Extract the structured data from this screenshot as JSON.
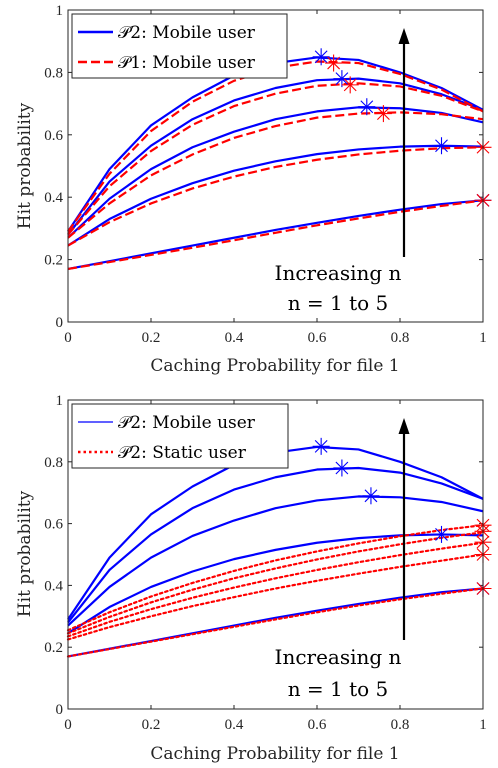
{
  "chart_data": [
    {
      "type": "line",
      "xlabel": "Caching Probability for file 1",
      "ylabel": "Hit probability",
      "xlim": [
        0,
        1
      ],
      "ylim": [
        0,
        1
      ],
      "xticks": [
        "0",
        "0.2",
        "0.4",
        "0.6",
        "0.8",
        "1"
      ],
      "yticks": [
        "0",
        "0.2",
        "0.4",
        "0.6",
        "0.8",
        "1"
      ],
      "grid": false,
      "legend_placement": "top-left",
      "legend": [
        {
          "label": "𝒫2: Mobile user",
          "color": "#0000ff",
          "style": "solid"
        },
        {
          "label": "𝒫1: Mobile user",
          "color": "#ff0000",
          "style": "dashed"
        }
      ],
      "annotation": {
        "line1": "Increasing n",
        "line2": "n = 1 to 5"
      },
      "series": [
        {
          "group": "P2: Mobile user",
          "n": 1,
          "color": "#0000ff",
          "dash": "solid",
          "x": [
            0,
            0.1,
            0.2,
            0.3,
            0.4,
            0.5,
            0.6,
            0.7,
            0.8,
            0.9,
            1.0
          ],
          "y": [
            0.17,
            0.195,
            0.22,
            0.245,
            0.27,
            0.295,
            0.318,
            0.34,
            0.36,
            0.378,
            0.39
          ],
          "marker": {
            "x": 1.0,
            "y": 0.39
          }
        },
        {
          "group": "P1: Mobile user",
          "n": 1,
          "color": "#ff0000",
          "dash": "dashed",
          "x": [
            0,
            0.1,
            0.2,
            0.3,
            0.4,
            0.5,
            0.6,
            0.7,
            0.8,
            0.9,
            1.0
          ],
          "y": [
            0.17,
            0.192,
            0.215,
            0.238,
            0.262,
            0.286,
            0.31,
            0.332,
            0.353,
            0.372,
            0.39
          ],
          "marker": {
            "x": 1.0,
            "y": 0.39
          }
        },
        {
          "group": "P2: Mobile user",
          "n": 2,
          "color": "#0000ff",
          "dash": "solid",
          "x": [
            0,
            0.1,
            0.2,
            0.3,
            0.4,
            0.5,
            0.6,
            0.7,
            0.8,
            0.9,
            1.0
          ],
          "y": [
            0.245,
            0.33,
            0.395,
            0.445,
            0.485,
            0.515,
            0.538,
            0.553,
            0.562,
            0.565,
            0.562
          ],
          "marker": {
            "x": 0.9,
            "y": 0.565
          }
        },
        {
          "group": "P1: Mobile user",
          "n": 2,
          "color": "#ff0000",
          "dash": "dashed",
          "x": [
            0,
            0.1,
            0.2,
            0.3,
            0.4,
            0.5,
            0.6,
            0.7,
            0.8,
            0.9,
            1.0
          ],
          "y": [
            0.245,
            0.32,
            0.38,
            0.428,
            0.466,
            0.497,
            0.52,
            0.537,
            0.549,
            0.557,
            0.56
          ],
          "marker": {
            "x": 1.0,
            "y": 0.56
          }
        },
        {
          "group": "P2: Mobile user",
          "n": 3,
          "color": "#0000ff",
          "dash": "solid",
          "x": [
            0,
            0.1,
            0.2,
            0.3,
            0.4,
            0.5,
            0.6,
            0.7,
            0.8,
            0.9,
            1.0
          ],
          "y": [
            0.27,
            0.395,
            0.49,
            0.56,
            0.61,
            0.65,
            0.675,
            0.688,
            0.685,
            0.67,
            0.64
          ],
          "marker": {
            "x": 0.72,
            "y": 0.69
          }
        },
        {
          "group": "P1: Mobile user",
          "n": 3,
          "color": "#ff0000",
          "dash": "dashed",
          "x": [
            0,
            0.1,
            0.2,
            0.3,
            0.4,
            0.5,
            0.6,
            0.7,
            0.8,
            0.9,
            1.0
          ],
          "y": [
            0.27,
            0.38,
            0.47,
            0.537,
            0.59,
            0.628,
            0.655,
            0.668,
            0.672,
            0.666,
            0.65
          ],
          "marker": {
            "x": 0.76,
            "y": 0.668
          }
        },
        {
          "group": "P2: Mobile user",
          "n": 4,
          "color": "#0000ff",
          "dash": "solid",
          "x": [
            0,
            0.1,
            0.2,
            0.3,
            0.4,
            0.5,
            0.6,
            0.7,
            0.8,
            0.9,
            1.0
          ],
          "y": [
            0.28,
            0.45,
            0.565,
            0.65,
            0.71,
            0.75,
            0.775,
            0.78,
            0.765,
            0.73,
            0.68
          ],
          "marker": {
            "x": 0.66,
            "y": 0.78
          }
        },
        {
          "group": "P1: Mobile user",
          "n": 4,
          "color": "#ff0000",
          "dash": "dashed",
          "x": [
            0,
            0.1,
            0.2,
            0.3,
            0.4,
            0.5,
            0.6,
            0.7,
            0.8,
            0.9,
            1.0
          ],
          "y": [
            0.28,
            0.435,
            0.548,
            0.632,
            0.692,
            0.732,
            0.757,
            0.765,
            0.755,
            0.725,
            0.675
          ],
          "marker": {
            "x": 0.68,
            "y": 0.76
          }
        },
        {
          "group": "P2: Mobile user",
          "n": 5,
          "color": "#0000ff",
          "dash": "solid",
          "x": [
            0,
            0.1,
            0.2,
            0.3,
            0.4,
            0.5,
            0.6,
            0.7,
            0.8,
            0.9,
            1.0
          ],
          "y": [
            0.29,
            0.49,
            0.63,
            0.72,
            0.79,
            0.83,
            0.848,
            0.84,
            0.8,
            0.75,
            0.68
          ],
          "marker": {
            "x": 0.61,
            "y": 0.85
          }
        },
        {
          "group": "P1: Mobile user",
          "n": 5,
          "color": "#ff0000",
          "dash": "dashed",
          "x": [
            0,
            0.1,
            0.2,
            0.3,
            0.4,
            0.5,
            0.6,
            0.7,
            0.8,
            0.9,
            1.0
          ],
          "y": [
            0.29,
            0.475,
            0.612,
            0.706,
            0.773,
            0.815,
            0.835,
            0.83,
            0.795,
            0.745,
            0.675
          ],
          "marker": {
            "x": 0.64,
            "y": 0.83
          }
        }
      ]
    },
    {
      "type": "line",
      "xlabel": "Caching Probability for file 1",
      "ylabel": "Hit probability",
      "xlim": [
        0,
        1
      ],
      "ylim": [
        0,
        1
      ],
      "xticks": [
        "0",
        "0.2",
        "0.4",
        "0.6",
        "0.8",
        "1"
      ],
      "yticks": [
        "0",
        "0.2",
        "0.4",
        "0.6",
        "0.8",
        "1"
      ],
      "grid": false,
      "legend_placement": "top-left",
      "legend": [
        {
          "label": "𝒫2: Mobile user",
          "color": "#0000ff",
          "style": "solid"
        },
        {
          "label": "𝒫2: Static user",
          "color": "#ff0000",
          "style": "dotted"
        }
      ],
      "annotation": {
        "line1": "Increasing n",
        "line2": "n = 1 to 5"
      },
      "series": [
        {
          "group": "P2: Mobile user",
          "n": 1,
          "color": "#0000ff",
          "dash": "solid",
          "x": [
            0,
            0.1,
            0.2,
            0.3,
            0.4,
            0.5,
            0.6,
            0.7,
            0.8,
            0.9,
            1.0
          ],
          "y": [
            0.17,
            0.195,
            0.22,
            0.245,
            0.27,
            0.295,
            0.318,
            0.34,
            0.36,
            0.378,
            0.39
          ],
          "marker": {
            "x": 1.0,
            "y": 0.39
          }
        },
        {
          "group": "P2: Mobile user",
          "n": 2,
          "color": "#0000ff",
          "dash": "solid",
          "x": [
            0,
            0.1,
            0.2,
            0.3,
            0.4,
            0.5,
            0.6,
            0.7,
            0.8,
            0.9,
            1.0
          ],
          "y": [
            0.245,
            0.33,
            0.395,
            0.445,
            0.485,
            0.515,
            0.538,
            0.553,
            0.562,
            0.565,
            0.562
          ],
          "marker": {
            "x": 0.9,
            "y": 0.565
          }
        },
        {
          "group": "P2: Mobile user",
          "n": 3,
          "color": "#0000ff",
          "dash": "solid",
          "x": [
            0,
            0.1,
            0.2,
            0.3,
            0.4,
            0.5,
            0.6,
            0.7,
            0.8,
            0.9,
            1.0
          ],
          "y": [
            0.27,
            0.395,
            0.49,
            0.56,
            0.61,
            0.65,
            0.675,
            0.688,
            0.685,
            0.67,
            0.64
          ],
          "marker": {
            "x": 0.73,
            "y": 0.69
          }
        },
        {
          "group": "P2: Mobile user",
          "n": 4,
          "color": "#0000ff",
          "dash": "solid",
          "x": [
            0,
            0.1,
            0.2,
            0.3,
            0.4,
            0.5,
            0.6,
            0.7,
            0.8,
            0.9,
            1.0
          ],
          "y": [
            0.28,
            0.45,
            0.565,
            0.65,
            0.71,
            0.75,
            0.775,
            0.78,
            0.765,
            0.73,
            0.68
          ],
          "marker": {
            "x": 0.66,
            "y": 0.78
          }
        },
        {
          "group": "P2: Mobile user",
          "n": 5,
          "color": "#0000ff",
          "dash": "solid",
          "x": [
            0,
            0.1,
            0.2,
            0.3,
            0.4,
            0.5,
            0.6,
            0.7,
            0.8,
            0.9,
            1.0
          ],
          "y": [
            0.29,
            0.49,
            0.63,
            0.72,
            0.79,
            0.83,
            0.848,
            0.84,
            0.8,
            0.75,
            0.68
          ],
          "marker": {
            "x": 0.61,
            "y": 0.85
          }
        },
        {
          "group": "P2: Static user",
          "n": 1,
          "color": "#ff0000",
          "dash": "dotted",
          "x": [
            0,
            0.1,
            0.2,
            0.3,
            0.4,
            0.5,
            0.6,
            0.7,
            0.8,
            0.9,
            1.0
          ],
          "y": [
            0.17,
            0.194,
            0.218,
            0.242,
            0.266,
            0.29,
            0.313,
            0.335,
            0.355,
            0.373,
            0.39
          ],
          "marker": {
            "x": 1.0,
            "y": 0.39
          }
        },
        {
          "group": "P2: Static user",
          "n": 2,
          "color": "#ff0000",
          "dash": "dotted",
          "x": [
            0,
            0.1,
            0.2,
            0.3,
            0.4,
            0.5,
            0.6,
            0.7,
            0.8,
            0.9,
            1.0
          ],
          "y": [
            0.225,
            0.265,
            0.3,
            0.333,
            0.362,
            0.39,
            0.415,
            0.438,
            0.46,
            0.48,
            0.5
          ],
          "marker": {
            "x": 1.0,
            "y": 0.5
          }
        },
        {
          "group": "P2: Static user",
          "n": 3,
          "color": "#ff0000",
          "dash": "dotted",
          "x": [
            0,
            0.1,
            0.2,
            0.3,
            0.4,
            0.5,
            0.6,
            0.7,
            0.8,
            0.9,
            1.0
          ],
          "y": [
            0.235,
            0.282,
            0.323,
            0.36,
            0.393,
            0.423,
            0.45,
            0.475,
            0.498,
            0.519,
            0.538
          ],
          "marker": {
            "x": 1.0,
            "y": 0.54
          }
        },
        {
          "group": "P2: Static user",
          "n": 4,
          "color": "#ff0000",
          "dash": "dotted",
          "x": [
            0,
            0.1,
            0.2,
            0.3,
            0.4,
            0.5,
            0.6,
            0.7,
            0.8,
            0.9,
            1.0
          ],
          "y": [
            0.245,
            0.298,
            0.345,
            0.386,
            0.423,
            0.455,
            0.484,
            0.51,
            0.533,
            0.554,
            0.572
          ],
          "marker": {
            "x": 1.0,
            "y": 0.575
          }
        },
        {
          "group": "P2: Static user",
          "n": 5,
          "color": "#ff0000",
          "dash": "dotted",
          "x": [
            0,
            0.1,
            0.2,
            0.3,
            0.4,
            0.5,
            0.6,
            0.7,
            0.8,
            0.9,
            1.0
          ],
          "y": [
            0.255,
            0.313,
            0.364,
            0.408,
            0.447,
            0.481,
            0.51,
            0.536,
            0.559,
            0.579,
            0.595
          ],
          "marker": {
            "x": 1.0,
            "y": 0.595
          }
        }
      ]
    }
  ]
}
